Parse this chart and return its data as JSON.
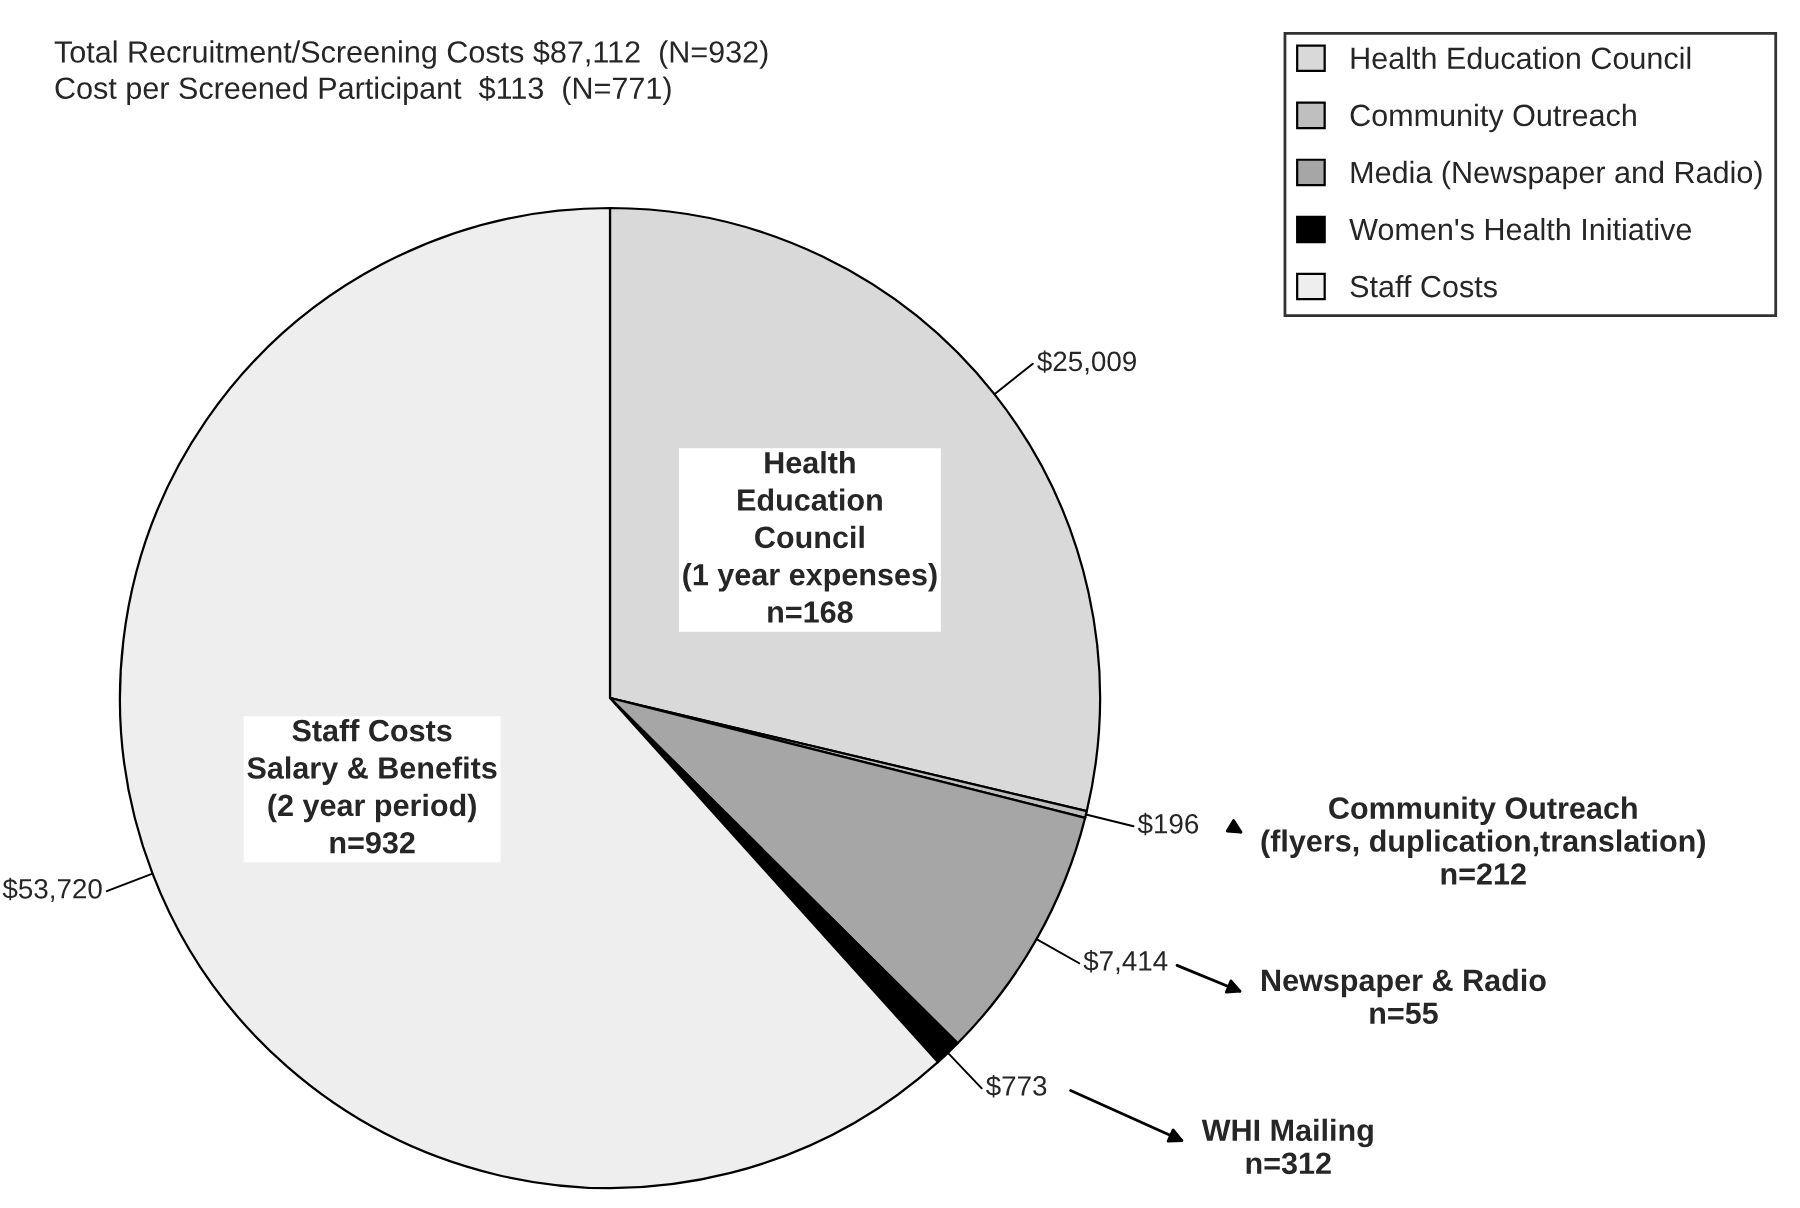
{
  "chart_data": {
    "type": "pie",
    "title": "Total Recruitment/Screening Costs $87,112  (N=932)",
    "subtitle": "Cost per Screened Participant  $113  (N=771)",
    "categories": [
      "Health Education Council",
      "Community Outreach",
      "Media (Newspaper and Radio)",
      "Women's Health Initiative",
      "Staff Costs"
    ],
    "values": [
      25009,
      196,
      7414,
      773,
      53720
    ],
    "value_labels": [
      "$25,009",
      "$196",
      "$7,414",
      "$773",
      "$53,720"
    ],
    "colors": [
      "#d9d9d9",
      "#bfbfbf",
      "#a6a6a6",
      "#000000",
      "#eeeeee"
    ],
    "legend": "top right",
    "annotations": [
      {
        "text": "Health\nEducation\nCouncil\n(1 year expenses)\nn=168",
        "x": "Health Education Council"
      },
      {
        "text": "Community Outreach\n(flyers, duplication,translation)\nn=212",
        "x": "Community Outreach"
      },
      {
        "text": "Newspaper & Radio\nn=55",
        "x": "Media (Newspaper and Radio)"
      },
      {
        "text": "WHI Mailing\nn=312",
        "x": "Women's Health Initiative"
      },
      {
        "text": "Staff Costs\nSalary & Benefits\n(2 year period)\nn=932",
        "x": "Staff Costs"
      }
    ]
  }
}
